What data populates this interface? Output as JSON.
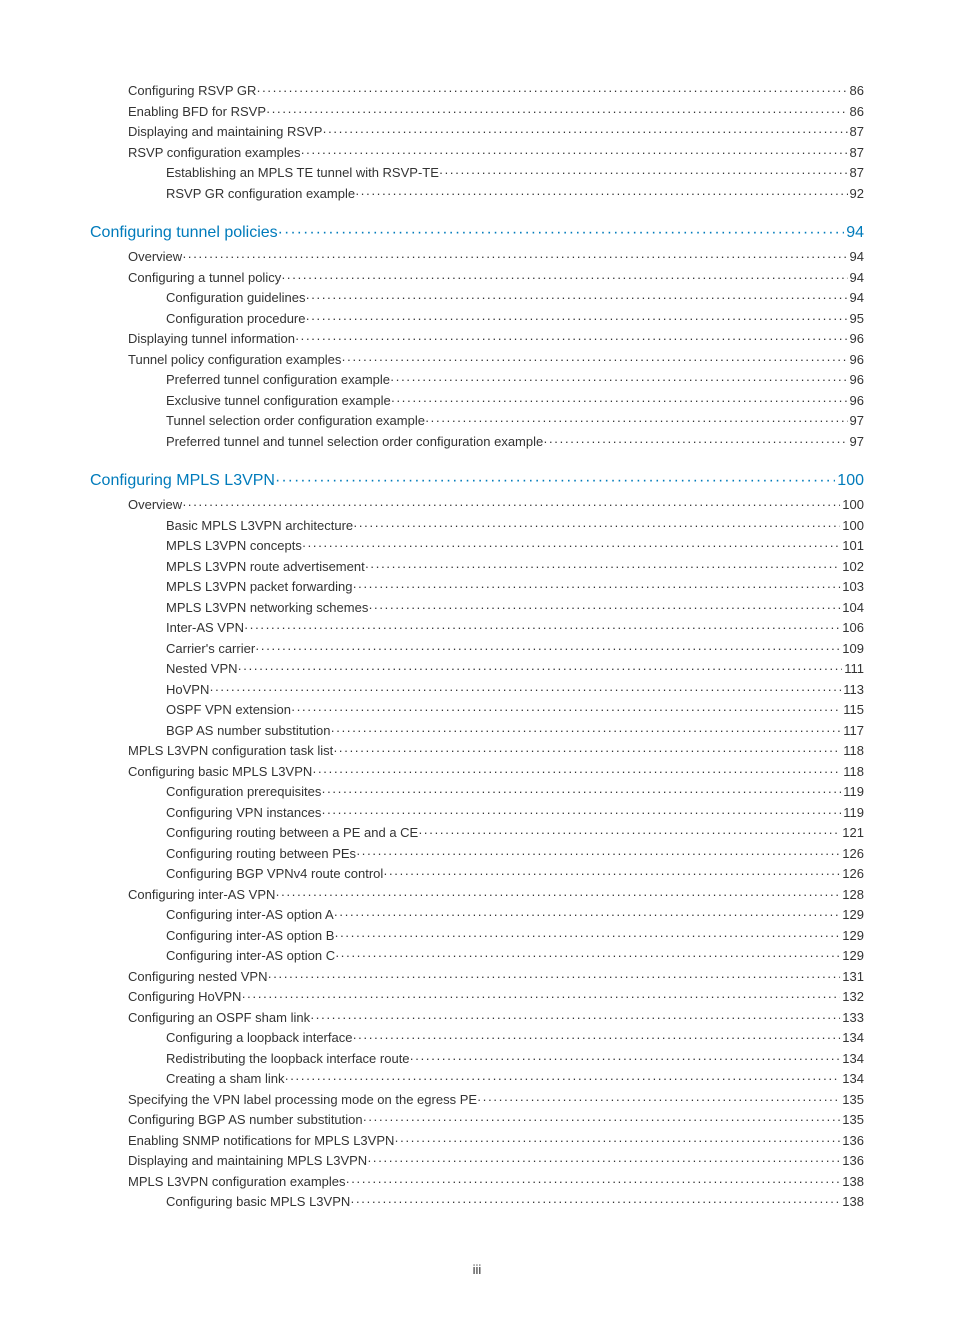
{
  "pageLabel": "iii",
  "entries": [
    {
      "label": "Configuring RSVP GR",
      "page": "86",
      "indent": 1,
      "head": false
    },
    {
      "label": "Enabling BFD for RSVP",
      "page": "86",
      "indent": 1,
      "head": false
    },
    {
      "label": "Displaying and maintaining RSVP",
      "page": "87",
      "indent": 1,
      "head": false
    },
    {
      "label": "RSVP configuration examples",
      "page": "87",
      "indent": 1,
      "head": false
    },
    {
      "label": "Establishing an MPLS TE tunnel with RSVP-TE",
      "page": "87",
      "indent": 2,
      "head": false
    },
    {
      "label": "RSVP GR configuration example",
      "page": "92",
      "indent": 2,
      "head": false
    },
    {
      "label": "Configuring tunnel policies",
      "page": "94",
      "indent": 0,
      "head": true
    },
    {
      "label": "Overview",
      "page": "94",
      "indent": 1,
      "head": false
    },
    {
      "label": "Configuring a tunnel policy",
      "page": "94",
      "indent": 1,
      "head": false
    },
    {
      "label": "Configuration guidelines",
      "page": "94",
      "indent": 2,
      "head": false
    },
    {
      "label": "Configuration procedure",
      "page": "95",
      "indent": 2,
      "head": false
    },
    {
      "label": "Displaying tunnel information",
      "page": "96",
      "indent": 1,
      "head": false
    },
    {
      "label": "Tunnel policy configuration examples",
      "page": "96",
      "indent": 1,
      "head": false
    },
    {
      "label": "Preferred tunnel configuration example",
      "page": "96",
      "indent": 2,
      "head": false
    },
    {
      "label": "Exclusive tunnel configuration example",
      "page": "96",
      "indent": 2,
      "head": false
    },
    {
      "label": "Tunnel selection order configuration example",
      "page": "97",
      "indent": 2,
      "head": false
    },
    {
      "label": "Preferred tunnel and tunnel selection order configuration example",
      "page": "97",
      "indent": 2,
      "head": false
    },
    {
      "label": "Configuring MPLS L3VPN",
      "page": "100",
      "indent": 0,
      "head": true
    },
    {
      "label": "Overview",
      "page": "100",
      "indent": 1,
      "head": false
    },
    {
      "label": "Basic MPLS L3VPN architecture",
      "page": "100",
      "indent": 2,
      "head": false
    },
    {
      "label": "MPLS L3VPN concepts",
      "page": "101",
      "indent": 2,
      "head": false
    },
    {
      "label": "MPLS L3VPN route advertisement",
      "page": "102",
      "indent": 2,
      "head": false
    },
    {
      "label": "MPLS L3VPN packet forwarding",
      "page": "103",
      "indent": 2,
      "head": false
    },
    {
      "label": "MPLS L3VPN networking schemes",
      "page": "104",
      "indent": 2,
      "head": false
    },
    {
      "label": "Inter-AS VPN",
      "page": "106",
      "indent": 2,
      "head": false
    },
    {
      "label": "Carrier's carrier",
      "page": "109",
      "indent": 2,
      "head": false
    },
    {
      "label": "Nested VPN",
      "page": "111",
      "indent": 2,
      "head": false
    },
    {
      "label": "HoVPN",
      "page": "113",
      "indent": 2,
      "head": false
    },
    {
      "label": "OSPF VPN extension",
      "page": "115",
      "indent": 2,
      "head": false
    },
    {
      "label": "BGP AS number substitution",
      "page": "117",
      "indent": 2,
      "head": false
    },
    {
      "label": "MPLS L3VPN configuration task list",
      "page": "118",
      "indent": 1,
      "head": false
    },
    {
      "label": "Configuring basic MPLS L3VPN",
      "page": "118",
      "indent": 1,
      "head": false
    },
    {
      "label": "Configuration prerequisites",
      "page": "119",
      "indent": 2,
      "head": false
    },
    {
      "label": "Configuring VPN instances",
      "page": "119",
      "indent": 2,
      "head": false
    },
    {
      "label": "Configuring routing between a PE and a CE",
      "page": "121",
      "indent": 2,
      "head": false
    },
    {
      "label": "Configuring routing between PEs",
      "page": "126",
      "indent": 2,
      "head": false
    },
    {
      "label": "Configuring BGP VPNv4 route control",
      "page": "126",
      "indent": 2,
      "head": false
    },
    {
      "label": "Configuring inter-AS VPN",
      "page": "128",
      "indent": 1,
      "head": false
    },
    {
      "label": "Configuring inter-AS option A",
      "page": "129",
      "indent": 2,
      "head": false
    },
    {
      "label": "Configuring inter-AS option B",
      "page": "129",
      "indent": 2,
      "head": false
    },
    {
      "label": "Configuring inter-AS option C",
      "page": "129",
      "indent": 2,
      "head": false
    },
    {
      "label": "Configuring nested VPN",
      "page": "131",
      "indent": 1,
      "head": false
    },
    {
      "label": "Configuring HoVPN",
      "page": "132",
      "indent": 1,
      "head": false
    },
    {
      "label": "Configuring an OSPF sham link",
      "page": "133",
      "indent": 1,
      "head": false
    },
    {
      "label": "Configuring a loopback interface",
      "page": "134",
      "indent": 2,
      "head": false
    },
    {
      "label": "Redistributing the loopback interface route",
      "page": "134",
      "indent": 2,
      "head": false
    },
    {
      "label": "Creating a sham link",
      "page": "134",
      "indent": 2,
      "head": false
    },
    {
      "label": "Specifying the VPN label processing mode on the egress PE",
      "page": "135",
      "indent": 1,
      "head": false
    },
    {
      "label": "Configuring BGP AS number substitution",
      "page": "135",
      "indent": 1,
      "head": false
    },
    {
      "label": "Enabling SNMP notifications for MPLS L3VPN",
      "page": "136",
      "indent": 1,
      "head": false
    },
    {
      "label": "Displaying and maintaining MPLS L3VPN",
      "page": "136",
      "indent": 1,
      "head": false
    },
    {
      "label": "MPLS L3VPN configuration examples",
      "page": "138",
      "indent": 1,
      "head": false
    },
    {
      "label": "Configuring basic MPLS L3VPN",
      "page": "138",
      "indent": 2,
      "head": false
    }
  ]
}
